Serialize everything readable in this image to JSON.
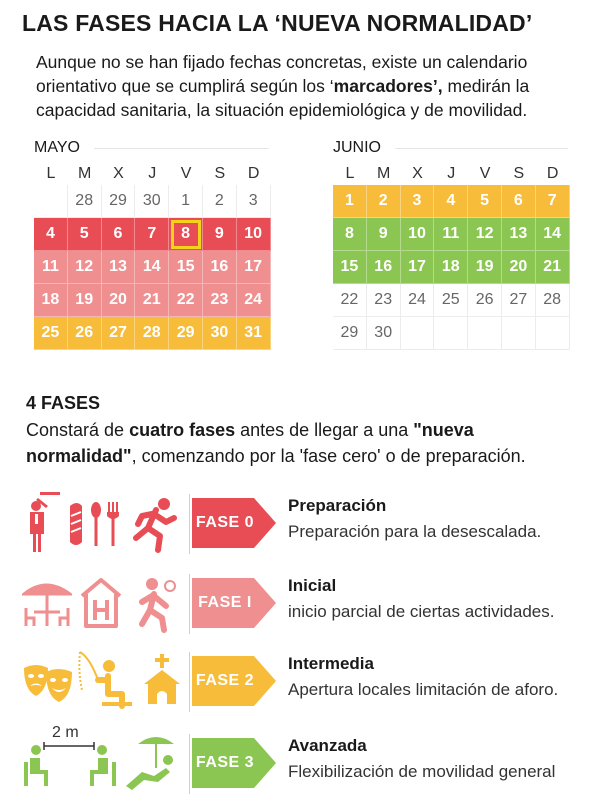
{
  "title": "LAS FASES HACIA LA ‘NUEVA NORMALIDAD’",
  "intro": {
    "before": "Aunque no se han fijado fechas concretas, existe un calendario orientativo que se cumplirá según los ‘",
    "bold": "marcadores’,",
    "after": " medirán la capacidad sanitaria, la situación epidemiológica y de movilidad."
  },
  "colors": {
    "red": "#e84c55",
    "pink": "#ef8f8f",
    "yellow": "#f7bd3a",
    "green": "#8cc652",
    "highlight": "#f4d21a"
  },
  "weekdays": [
    "L",
    "M",
    "X",
    "J",
    "V",
    "S",
    "D"
  ],
  "calendars": [
    {
      "name": "MAYO",
      "rows": [
        [
          {
            "d": "28",
            "c": "plain"
          },
          {
            "d": "29",
            "c": "plain"
          },
          {
            "d": "30",
            "c": "plain"
          },
          {
            "d": "1",
            "c": "plain"
          },
          {
            "d": "2",
            "c": "plain"
          },
          {
            "d": "3",
            "c": "plain"
          }
        ],
        [
          {
            "d": "4",
            "c": "red"
          },
          {
            "d": "5",
            "c": "red"
          },
          {
            "d": "6",
            "c": "red"
          },
          {
            "d": "7",
            "c": "red"
          },
          {
            "d": "8",
            "c": "red",
            "hl": true
          },
          {
            "d": "9",
            "c": "red"
          },
          {
            "d": "10",
            "c": "red"
          }
        ],
        [
          {
            "d": "11",
            "c": "pink"
          },
          {
            "d": "12",
            "c": "pink"
          },
          {
            "d": "13",
            "c": "pink"
          },
          {
            "d": "14",
            "c": "pink"
          },
          {
            "d": "15",
            "c": "pink"
          },
          {
            "d": "16",
            "c": "pink"
          },
          {
            "d": "17",
            "c": "pink"
          }
        ],
        [
          {
            "d": "18",
            "c": "pink"
          },
          {
            "d": "19",
            "c": "pink"
          },
          {
            "d": "20",
            "c": "pink"
          },
          {
            "d": "21",
            "c": "pink"
          },
          {
            "d": "22",
            "c": "pink"
          },
          {
            "d": "23",
            "c": "pink"
          },
          {
            "d": "24",
            "c": "pink"
          }
        ],
        [
          {
            "d": "25",
            "c": "yellow"
          },
          {
            "d": "26",
            "c": "yellow"
          },
          {
            "d": "27",
            "c": "yellow"
          },
          {
            "d": "28",
            "c": "yellow"
          },
          {
            "d": "29",
            "c": "yellow"
          },
          {
            "d": "30",
            "c": "yellow"
          },
          {
            "d": "31",
            "c": "yellow"
          }
        ]
      ],
      "lead_blanks": 1
    },
    {
      "name": "JUNIO",
      "rows": [
        [
          {
            "d": "1",
            "c": "yellow"
          },
          {
            "d": "2",
            "c": "yellow"
          },
          {
            "d": "3",
            "c": "yellow"
          },
          {
            "d": "4",
            "c": "yellow"
          },
          {
            "d": "5",
            "c": "yellow"
          },
          {
            "d": "6",
            "c": "yellow"
          },
          {
            "d": "7",
            "c": "yellow"
          }
        ],
        [
          {
            "d": "8",
            "c": "green"
          },
          {
            "d": "9",
            "c": "green"
          },
          {
            "d": "10",
            "c": "green"
          },
          {
            "d": "11",
            "c": "green"
          },
          {
            "d": "12",
            "c": "green"
          },
          {
            "d": "13",
            "c": "green"
          },
          {
            "d": "14",
            "c": "green"
          }
        ],
        [
          {
            "d": "15",
            "c": "green"
          },
          {
            "d": "16",
            "c": "green"
          },
          {
            "d": "17",
            "c": "green"
          },
          {
            "d": "18",
            "c": "green"
          },
          {
            "d": "19",
            "c": "green"
          },
          {
            "d": "20",
            "c": "green"
          },
          {
            "d": "21",
            "c": "green"
          }
        ],
        [
          {
            "d": "22",
            "c": "plain"
          },
          {
            "d": "23",
            "c": "plain"
          },
          {
            "d": "24",
            "c": "plain"
          },
          {
            "d": "25",
            "c": "plain"
          },
          {
            "d": "26",
            "c": "plain"
          },
          {
            "d": "27",
            "c": "plain"
          },
          {
            "d": "28",
            "c": "plain"
          }
        ],
        [
          {
            "d": "29",
            "c": "plain"
          },
          {
            "d": "30",
            "c": "plain"
          }
        ]
      ],
      "lead_blanks": 0,
      "trail_blanks": 5
    }
  ],
  "phases_section": {
    "heading": "4 FASES",
    "desc_1": "Constará de ",
    "desc_bold_1": "cuatro fases",
    "desc_2": " antes de llegar a una ",
    "desc_bold_2": "\"nueva normalidad\"",
    "desc_3": ", comenzando por la 'fase cero' o de preparación."
  },
  "phases": [
    {
      "label": "FASE 0",
      "name": "Preparación",
      "desc": "Preparación para la desescalada.",
      "color": "#e84c55",
      "icons": [
        "waiter-icon",
        "cutlery-icon",
        "runner-icon"
      ]
    },
    {
      "label": "FASE I",
      "name": "Inicial",
      "desc": "inicio parcial de ciertas actividades.",
      "color": "#ef8f8f",
      "icons": [
        "terrace-icon",
        "hotel-icon",
        "sport-icon"
      ]
    },
    {
      "label": "FASE 2",
      "name": "Intermedia",
      "desc": "Apertura locales limitación de aforo.",
      "color": "#f7bd3a",
      "icons": [
        "theater-masks-icon",
        "fishing-icon",
        "church-icon"
      ]
    },
    {
      "label": "FASE 3",
      "name": "Avanzada",
      "desc": "Flexibilización de movilidad general",
      "color": "#8cc652",
      "icons": [
        "distance-icon",
        "beach-icon"
      ],
      "distance_label": "2 m"
    }
  ]
}
